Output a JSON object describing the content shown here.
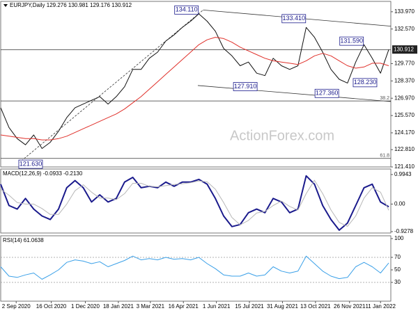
{
  "chart_data": [
    {
      "type": "line",
      "title": "EURJPY,Daily  129.276 130.981 129.176 130.912",
      "watermark": "ActionForex.com",
      "x": [
        0,
        8,
        16,
        24,
        32,
        40,
        48,
        56,
        64,
        72,
        80,
        88,
        96,
        104,
        112,
        120,
        128,
        136,
        144,
        152,
        160,
        168,
        176,
        184,
        192,
        200,
        208,
        216,
        224,
        232,
        240,
        248,
        256,
        264,
        272,
        280,
        288,
        296,
        304,
        312,
        320,
        328,
        336,
        344,
        352,
        360,
        368,
        376
      ],
      "xlim": [
        0,
        378
      ],
      "ylim": [
        121.41,
        134.75
      ],
      "yticks": [
        {
          "value": 133.97,
          "label": "133.970"
        },
        {
          "value": 132.57,
          "label": "132.570"
        },
        {
          "value": 129.77,
          "label": "129.770"
        },
        {
          "value": 128.37,
          "label": "128.370"
        },
        {
          "value": 126.97,
          "label": "126.970"
        },
        {
          "value": 125.57,
          "label": "125.570"
        },
        {
          "value": 124.17,
          "label": "124.170"
        },
        {
          "value": 122.81,
          "label": "122.810"
        },
        {
          "value": 121.41,
          "label": "121.410"
        }
      ],
      "last": {
        "value": 130.912,
        "label": "130.912"
      },
      "series": [
        {
          "color": "#111111",
          "values": [
            126.2,
            124.6,
            123.7,
            123.2,
            124.0,
            122.9,
            123.4,
            124.3,
            125.4,
            126.2,
            126.5,
            126.8,
            127.1,
            126.5,
            127.1,
            127.9,
            129.3,
            129.3,
            130.2,
            130.7,
            131.6,
            132.1,
            132.7,
            133.2,
            133.8,
            133.2,
            132.4,
            131.0,
            130.4,
            129.6,
            129.9,
            129.0,
            128.8,
            130.2,
            129.6,
            129.3,
            129.6,
            132.7,
            131.9,
            130.7,
            129.3,
            128.5,
            128.2,
            129.9,
            131.3,
            130.2,
            129.0,
            130.9
          ]
        },
        {
          "color": "#e0302a",
          "values": [
            124.0,
            123.9,
            123.8,
            123.7,
            123.7,
            123.6,
            123.6,
            123.7,
            123.9,
            124.2,
            124.5,
            124.8,
            125.1,
            125.4,
            125.7,
            126.1,
            126.6,
            127.1,
            127.7,
            128.3,
            128.9,
            129.5,
            130.1,
            130.7,
            131.3,
            131.7,
            131.9,
            131.8,
            131.5,
            131.1,
            130.8,
            130.5,
            130.2,
            130.0,
            129.9,
            129.8,
            129.7,
            130.0,
            130.4,
            130.6,
            130.4,
            130.0,
            129.6,
            129.4,
            129.5,
            129.8,
            129.8,
            129.6
          ]
        }
      ],
      "annotations": [
        {
          "x": 180,
          "value": 134.11,
          "label": "134.110"
        },
        {
          "x": 284,
          "value": 133.41,
          "label": "133.410"
        },
        {
          "x": 340,
          "value": 131.59,
          "label": "131.590"
        },
        {
          "x": 237,
          "value": 127.91,
          "label": "127.910"
        },
        {
          "x": 316,
          "value": 127.36,
          "label": "127.360"
        },
        {
          "x": 353,
          "value": 128.23,
          "label": "128.230"
        },
        {
          "x": 29,
          "value": 121.63,
          "label": "121.630"
        }
      ],
      "levels": [
        {
          "value": 126.75,
          "label": "38.2"
        },
        {
          "value": 122.1,
          "label": "61.8"
        }
      ],
      "hlines": [
        130.9
      ],
      "trendlines": [
        {
          "x": [
            20,
            196
          ],
          "y": [
            121.9,
            134.1
          ],
          "dashed": true
        },
        {
          "x": [
            196,
            378
          ],
          "y": [
            134.11,
            132.8
          ],
          "dashed": false
        },
        {
          "x": [
            191,
            378
          ],
          "y": [
            128.0,
            126.7
          ],
          "dashed": false
        }
      ]
    },
    {
      "type": "line",
      "title": "MACD(12,26,9) -0.0933 -0.2130",
      "x": [
        0,
        8,
        16,
        24,
        32,
        40,
        48,
        56,
        64,
        72,
        80,
        88,
        96,
        104,
        112,
        120,
        128,
        136,
        144,
        152,
        160,
        168,
        176,
        184,
        192,
        200,
        208,
        216,
        224,
        232,
        240,
        248,
        256,
        264,
        272,
        280,
        288,
        296,
        304,
        312,
        320,
        328,
        336,
        344,
        352,
        360,
        368,
        376
      ],
      "xlim": [
        0,
        378
      ],
      "ylim": [
        -0.975,
        1.18
      ],
      "yticks": [
        0.9943,
        {
          "value": 0,
          "label": "0.00"
        },
        -0.9278
      ],
      "series": [
        {
          "color": "#1a1a8c",
          "width": 2,
          "values": [
            0.67,
            -0.05,
            -0.17,
            0.19,
            -0.17,
            -0.4,
            -0.52,
            -0.17,
            0.55,
            0.79,
            0.55,
            0.07,
            0.31,
            0.07,
            0.19,
            0.74,
            0.9,
            0.55,
            0.6,
            0.55,
            0.74,
            0.6,
            0.74,
            0.74,
            0.83,
            0.67,
            0.19,
            -0.4,
            -0.76,
            -0.69,
            -0.29,
            -0.17,
            -0.29,
            0.19,
            0.07,
            -0.29,
            -0.17,
            0.95,
            0.67,
            -0.05,
            -0.52,
            -0.88,
            -0.64,
            -0.05,
            0.55,
            0.67,
            0.07,
            -0.09
          ]
        },
        {
          "color": "#b8b8b8",
          "width": 1,
          "values": [
            0.5,
            0.3,
            0.05,
            0.0,
            0.0,
            -0.15,
            -0.35,
            -0.35,
            0.0,
            0.45,
            0.65,
            0.4,
            0.2,
            0.2,
            0.15,
            0.35,
            0.7,
            0.7,
            0.6,
            0.58,
            0.62,
            0.66,
            0.68,
            0.72,
            0.78,
            0.75,
            0.5,
            0.05,
            -0.45,
            -0.7,
            -0.55,
            -0.3,
            -0.25,
            -0.05,
            0.1,
            -0.08,
            -0.2,
            0.35,
            0.8,
            0.35,
            -0.2,
            -0.62,
            -0.75,
            -0.4,
            0.2,
            0.55,
            0.4,
            -0.21
          ]
        }
      ]
    },
    {
      "type": "line",
      "title": "RSI(14) 61.0638",
      "x": [
        0,
        8,
        16,
        24,
        32,
        40,
        48,
        56,
        64,
        72,
        80,
        88,
        96,
        104,
        112,
        120,
        128,
        136,
        144,
        152,
        160,
        168,
        176,
        184,
        192,
        200,
        208,
        216,
        224,
        232,
        240,
        248,
        256,
        264,
        272,
        280,
        288,
        296,
        304,
        312,
        320,
        328,
        336,
        344,
        352,
        360,
        368,
        376
      ],
      "xlim": [
        0,
        378
      ],
      "ylim": [
        0,
        100
      ],
      "yticks": [
        100,
        70,
        50,
        30
      ],
      "levels": [
        70,
        30
      ],
      "xticks": [
        {
          "value": 15,
          "label": "2 Sep 2020"
        },
        {
          "value": 49,
          "label": "16 Oct 2020"
        },
        {
          "value": 82,
          "label": "1 Dec 2020"
        },
        {
          "value": 114,
          "label": "18 Jan 2021"
        },
        {
          "value": 145,
          "label": "3 Mar 2021"
        },
        {
          "value": 177,
          "label": "16 Apr 2021"
        },
        {
          "value": 209,
          "label": "1 Jun 2021"
        },
        {
          "value": 241,
          "label": "15 Jul 2021"
        },
        {
          "value": 273,
          "label": "31 Aug 2021"
        },
        {
          "value": 305,
          "label": "13 Oct 2021"
        },
        {
          "value": 338,
          "label": "26 Nov 2021"
        },
        {
          "value": 368,
          "label": "11 Jan 2022"
        }
      ],
      "series": [
        {
          "color": "#3aa0e8",
          "width": 1,
          "values": [
            55,
            40,
            38,
            42,
            45,
            35,
            42,
            50,
            62,
            66,
            64,
            60,
            63,
            55,
            60,
            65,
            72,
            66,
            68,
            66,
            70,
            67,
            68,
            66,
            70,
            60,
            52,
            42,
            40,
            40,
            45,
            40,
            42,
            55,
            48,
            45,
            48,
            72,
            60,
            48,
            40,
            36,
            38,
            55,
            62,
            55,
            45,
            61
          ]
        }
      ]
    }
  ]
}
